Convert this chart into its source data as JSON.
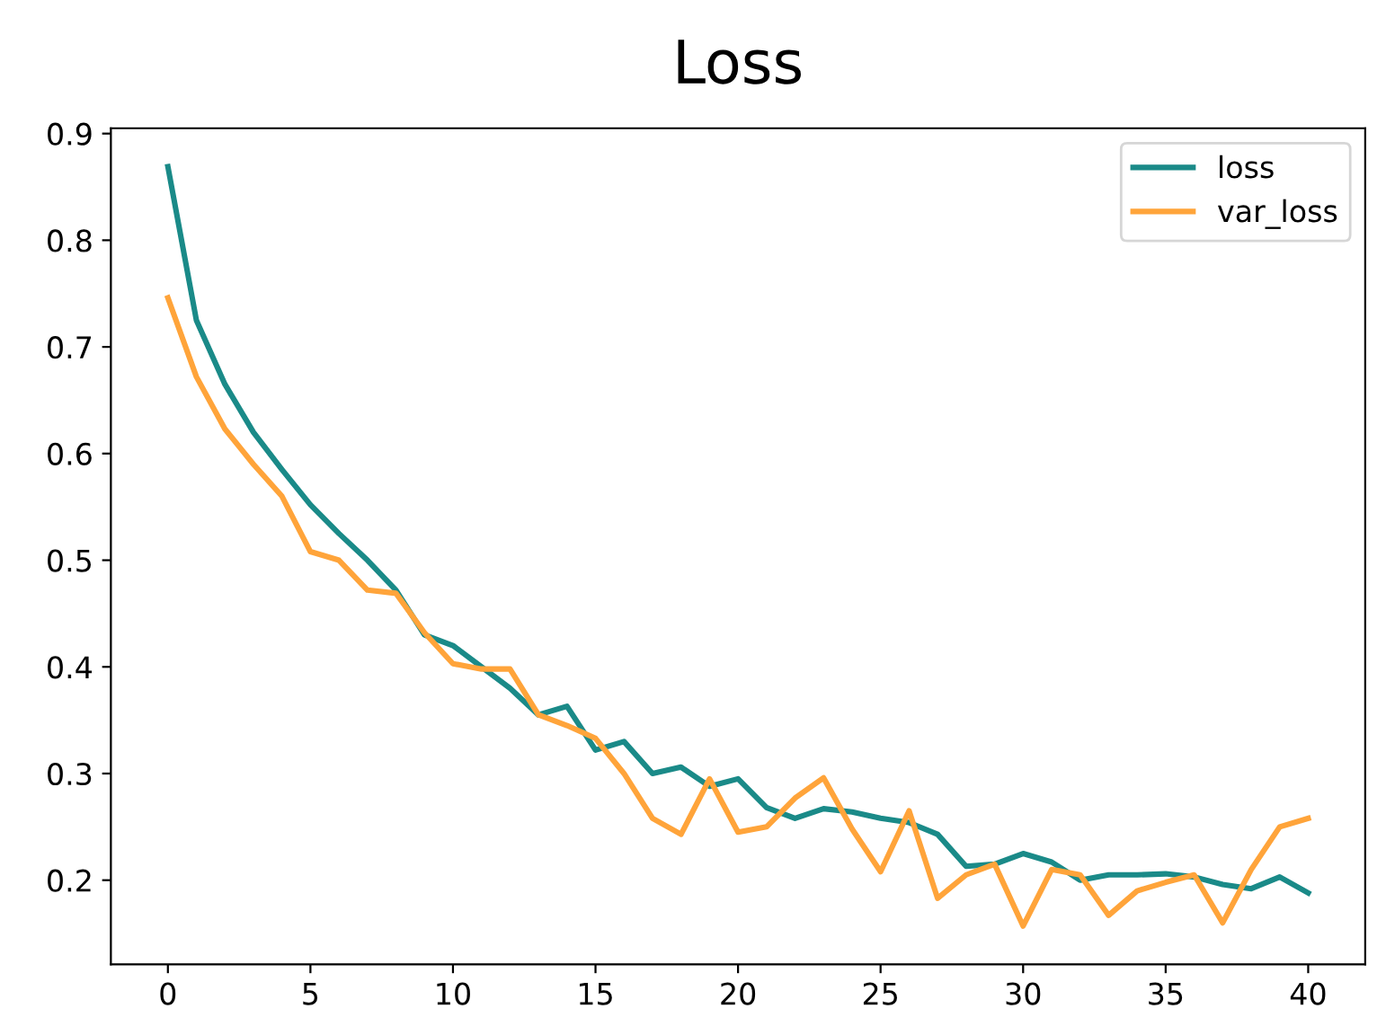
{
  "chart_data": {
    "type": "line",
    "title": "Loss",
    "x": [
      0,
      1,
      2,
      3,
      4,
      5,
      6,
      7,
      8,
      9,
      10,
      11,
      12,
      13,
      14,
      15,
      16,
      17,
      18,
      19,
      20,
      21,
      22,
      23,
      24,
      25,
      26,
      27,
      28,
      29,
      30,
      31,
      32,
      33,
      34,
      35,
      36,
      37,
      38,
      39,
      40
    ],
    "series": [
      {
        "name": "loss",
        "color": "#1a8a88",
        "values": [
          0.869,
          0.725,
          0.665,
          0.62,
          0.585,
          0.552,
          0.525,
          0.5,
          0.472,
          0.43,
          0.42,
          0.4,
          0.38,
          0.355,
          0.363,
          0.322,
          0.33,
          0.3,
          0.306,
          0.288,
          0.295,
          0.268,
          0.258,
          0.267,
          0.264,
          0.258,
          0.254,
          0.243,
          0.213,
          0.215,
          0.225,
          0.217,
          0.2,
          0.205,
          0.205,
          0.206,
          0.203,
          0.196,
          0.192,
          0.203,
          0.188
        ]
      },
      {
        "name": "var_loss",
        "color": "#ffa43a",
        "values": [
          0.746,
          0.672,
          0.623,
          0.59,
          0.56,
          0.508,
          0.5,
          0.472,
          0.469,
          0.432,
          0.403,
          0.398,
          0.398,
          0.355,
          0.345,
          0.333,
          0.3,
          0.258,
          0.243,
          0.295,
          0.245,
          0.25,
          0.277,
          0.296,
          0.248,
          0.208,
          0.265,
          0.183,
          0.205,
          0.215,
          0.157,
          0.21,
          0.205,
          0.167,
          0.19,
          0.198,
          0.205,
          0.16,
          0.21,
          0.25,
          0.258
        ]
      }
    ],
    "xlim": [
      -2,
      42
    ],
    "xticks": [
      0,
      5,
      10,
      15,
      20,
      25,
      30,
      35,
      40
    ],
    "ylim": [
      0.121,
      0.905
    ],
    "yticks": [
      0.2,
      0.3,
      0.4,
      0.5,
      0.6,
      0.7,
      0.8,
      0.9
    ],
    "grid": false,
    "legend": "top right",
    "line_style": "solid"
  }
}
